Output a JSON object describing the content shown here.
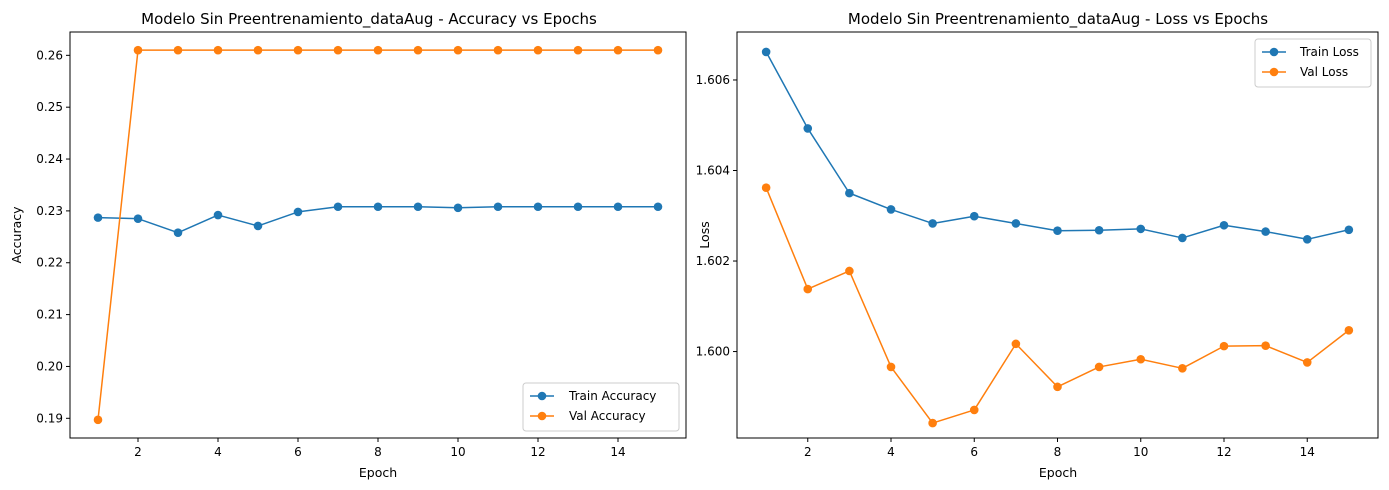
{
  "chart_data": [
    {
      "type": "line",
      "title": "Modelo Sin Preentrenamiento_dataAug - Accuracy vs Epochs",
      "xlabel": "Epoch",
      "ylabel": "Accuracy",
      "xlim": [
        0.3,
        15.7
      ],
      "ylim": [
        0.1862,
        0.2645
      ],
      "xticks": [
        2,
        4,
        6,
        8,
        10,
        12,
        14
      ],
      "xtick_labels": [
        "2",
        "4",
        "6",
        "8",
        "10",
        "12",
        "14"
      ],
      "yticks": [
        0.19,
        0.2,
        0.21,
        0.22,
        0.23,
        0.24,
        0.25,
        0.26
      ],
      "ytick_labels": [
        "0.19",
        "0.20",
        "0.21",
        "0.22",
        "0.23",
        "0.24",
        "0.25",
        "0.26"
      ],
      "legend_position": "lower-right",
      "grid": false,
      "x": [
        1,
        2,
        3,
        4,
        5,
        6,
        7,
        8,
        9,
        10,
        11,
        12,
        13,
        14,
        15
      ],
      "series": [
        {
          "name": "Train Accuracy",
          "color": "#1f77b4",
          "values": [
            0.2287,
            0.2285,
            0.2258,
            0.2292,
            0.2271,
            0.2298,
            0.2308,
            0.2308,
            0.2308,
            0.2306,
            0.2308,
            0.2308,
            0.2308,
            0.2308,
            0.2308
          ]
        },
        {
          "name": "Val Accuracy",
          "color": "#ff7f0e",
          "values": [
            0.1897,
            0.261,
            0.261,
            0.261,
            0.261,
            0.261,
            0.261,
            0.261,
            0.261,
            0.261,
            0.261,
            0.261,
            0.261,
            0.261,
            0.261
          ]
        }
      ]
    },
    {
      "type": "line",
      "title": "Modelo Sin Preentrenamiento_dataAug - Loss vs Epochs",
      "xlabel": "Epoch",
      "ylabel": "Loss",
      "xlim": [
        0.3,
        15.7
      ],
      "ylim": [
        1.59809,
        1.60706
      ],
      "xticks": [
        2,
        4,
        6,
        8,
        10,
        12,
        14
      ],
      "xtick_labels": [
        "2",
        "4",
        "6",
        "8",
        "10",
        "12",
        "14"
      ],
      "yticks": [
        1.6,
        1.602,
        1.604,
        1.606
      ],
      "ytick_labels": [
        "1.600",
        "1.602",
        "1.604",
        "1.606"
      ],
      "legend_position": "upper-right",
      "grid": false,
      "x": [
        1,
        2,
        3,
        4,
        5,
        6,
        7,
        8,
        9,
        10,
        11,
        12,
        13,
        14,
        15
      ],
      "series": [
        {
          "name": "Train Loss",
          "color": "#1f77b4",
          "values": [
            1.60662,
            1.60493,
            1.6035,
            1.60314,
            1.60283,
            1.60299,
            1.60283,
            1.60267,
            1.60268,
            1.60271,
            1.60251,
            1.60279,
            1.60265,
            1.60248,
            1.60269
          ]
        },
        {
          "name": "Val Loss",
          "color": "#ff7f0e",
          "values": [
            1.60362,
            1.60138,
            1.60178,
            1.59966,
            1.59842,
            1.59871,
            1.60017,
            1.59922,
            1.59966,
            1.59983,
            1.59963,
            1.60012,
            1.60013,
            1.59976,
            1.60047
          ]
        }
      ]
    }
  ]
}
